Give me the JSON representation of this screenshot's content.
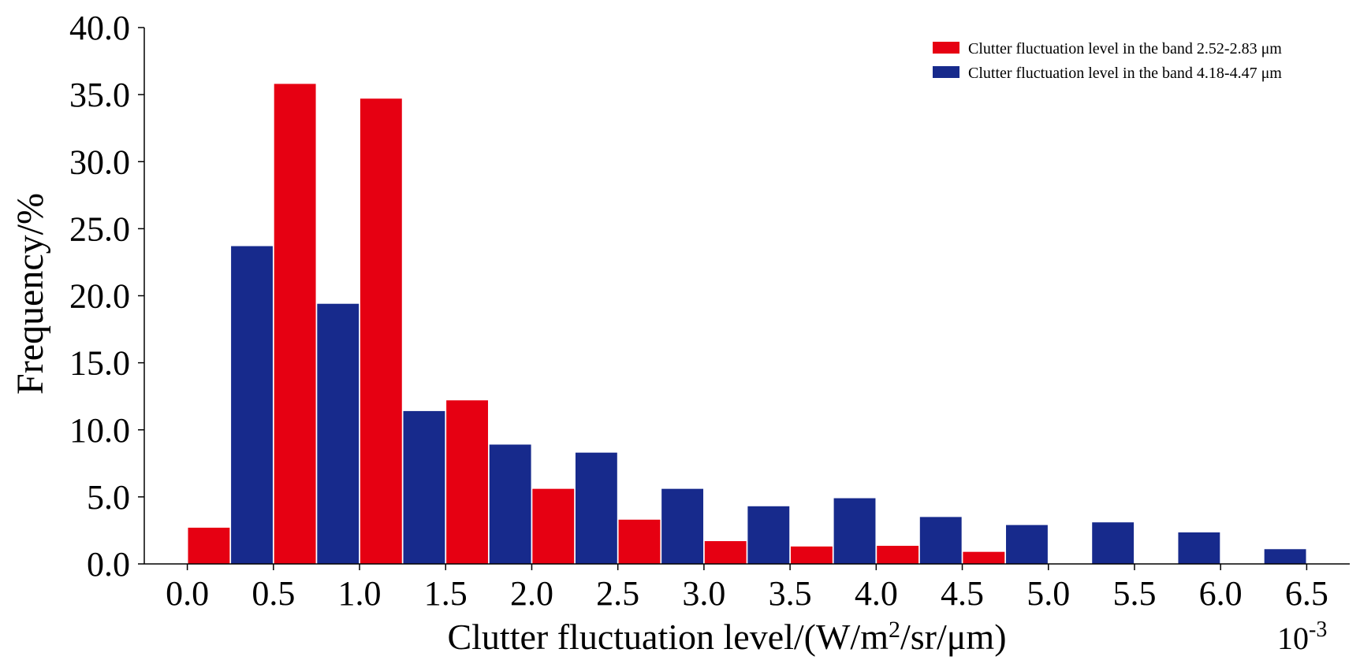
{
  "chart_data": {
    "type": "bar",
    "x_ticks": [
      "0.0",
      "0.5",
      "1.0",
      "1.5",
      "2.0",
      "2.5",
      "3.0",
      "3.5",
      "4.0",
      "4.5",
      "5.0",
      "5.5",
      "6.0",
      "6.5"
    ],
    "x_tick_values": [
      0.0,
      0.5,
      1.0,
      1.5,
      2.0,
      2.5,
      3.0,
      3.5,
      4.0,
      4.5,
      5.0,
      5.5,
      6.0,
      6.5
    ],
    "xlim": [
      -0.25,
      6.75
    ],
    "y_ticks": [
      "0.0",
      "5.0",
      "10.0",
      "15.0",
      "20.0",
      "25.0",
      "30.0",
      "35.0",
      "40.0"
    ],
    "y_tick_values": [
      0,
      5,
      10,
      15,
      20,
      25,
      30,
      35,
      40
    ],
    "ylim": [
      0,
      40
    ],
    "bin_width": 0.5,
    "bin_starts": [
      0.0,
      0.5,
      1.0,
      1.5,
      2.0,
      2.5,
      3.0,
      3.5,
      4.0,
      4.5,
      5.0,
      5.5,
      6.0
    ],
    "series": [
      {
        "name": "Clutter fluctuation level in the band 2.52-2.83 μm",
        "color": "#e60012",
        "values": [
          2.7,
          35.8,
          34.7,
          12.2,
          5.6,
          3.3,
          1.7,
          1.3,
          1.35,
          0.9,
          0,
          0,
          0
        ]
      },
      {
        "name": "Clutter fluctuation level in the band 4.18-4.47 μm",
        "color": "#172a8c",
        "values": [
          23.7,
          19.4,
          11.4,
          8.9,
          8.3,
          5.6,
          4.3,
          4.9,
          3.5,
          2.9,
          3.1,
          2.35,
          1.1
        ]
      }
    ],
    "ylabel": "Frequency/%",
    "xlabel_parts": {
      "main": "Clutter fluctuation level/(W/m",
      "superscript": "2",
      "tail": "/sr/μm)"
    },
    "x_exponent": {
      "base": "10",
      "power": "-3"
    },
    "legend_position": "top-right",
    "grid": false
  }
}
